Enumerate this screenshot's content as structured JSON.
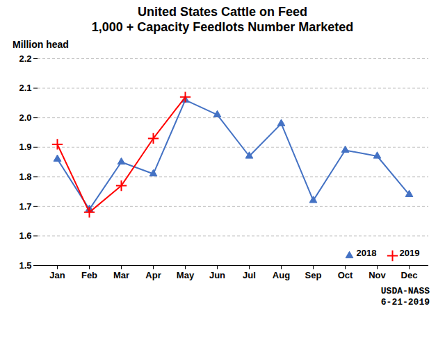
{
  "chart_data": {
    "type": "line",
    "title": "United States Cattle on Feed",
    "subtitle": "1,000 + Capacity Feedlots Number Marketed",
    "ylabel": "Million head",
    "categories": [
      "Jan",
      "Feb",
      "Mar",
      "Apr",
      "May",
      "Jun",
      "Jul",
      "Aug",
      "Sep",
      "Oct",
      "Nov",
      "Dec"
    ],
    "series": [
      {
        "name": "2018",
        "color": "#4472C4",
        "marker": "triangle",
        "values": [
          1.86,
          1.69,
          1.85,
          1.81,
          2.06,
          2.01,
          1.87,
          1.98,
          1.72,
          1.89,
          1.87,
          1.74
        ]
      },
      {
        "name": "2019",
        "color": "#FF0000",
        "marker": "plus",
        "values": [
          1.91,
          1.68,
          1.77,
          1.93,
          2.07,
          null,
          null,
          null,
          null,
          null,
          null,
          null
        ]
      }
    ],
    "ylim": [
      1.5,
      2.2
    ],
    "yticks": [
      1.5,
      1.6,
      1.7,
      1.8,
      1.9,
      {
        "value": 2.0,
        "label": "2.0"
      },
      2.1,
      2.2
    ],
    "grid": true,
    "legend": "lower right",
    "annotations": [
      "USDA-NASS",
      "6-21-2019"
    ]
  }
}
